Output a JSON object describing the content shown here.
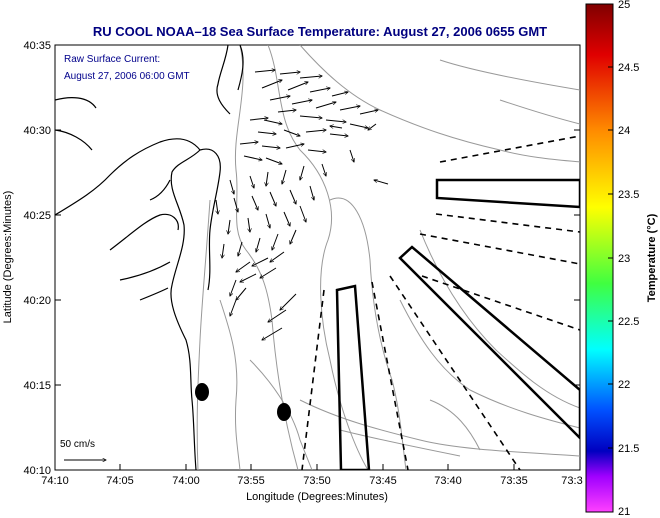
{
  "title": "RU COOL  NOAA–18  Sea Surface Temperature:  August 27, 2006 0655 GMT",
  "annotation": {
    "line1": "Raw Surface Current:",
    "line2": "August 27, 2006 06:00 GMT"
  },
  "scale_label": "50 cm/s",
  "x_axis": {
    "label": "Longitude (Degrees:Minutes)",
    "ticks": [
      "74:10",
      "74:05",
      "74:00",
      "73:55",
      "73:50",
      "73:45",
      "73:40",
      "73:35",
      "73:3"
    ]
  },
  "y_axis": {
    "label": "Latitude (Degrees:Minutes)",
    "ticks": [
      "40:35",
      "40:30",
      "40:25",
      "40:20",
      "40:15",
      "40:10"
    ]
  },
  "colorbar": {
    "label": "Temperature (°C)",
    "ticks": [
      "25",
      "24.5",
      "24",
      "23.5",
      "23",
      "22.5",
      "22",
      "21.5",
      "21"
    ]
  },
  "colors": {
    "title_text": "#000080",
    "annotation_text": "#00008b",
    "contour": "#999999",
    "coast": "#000000"
  }
}
